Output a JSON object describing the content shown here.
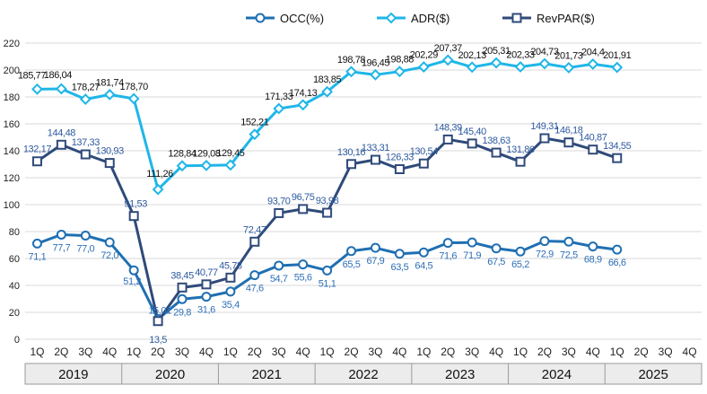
{
  "chart_data": {
    "type": "line",
    "title": "",
    "xlabel": "",
    "ylabel": "",
    "ylim": [
      0,
      220
    ],
    "yticks": [
      0,
      20,
      40,
      60,
      80,
      100,
      120,
      140,
      160,
      180,
      200,
      220
    ],
    "grid": true,
    "legend_position": "top-center",
    "quarters": [
      "1Q",
      "2Q",
      "3Q",
      "4Q",
      "1Q",
      "2Q",
      "3Q",
      "4Q",
      "1Q",
      "2Q",
      "3Q",
      "4Q",
      "1Q",
      "2Q",
      "3Q",
      "4Q",
      "1Q",
      "2Q",
      "3Q",
      "4Q",
      "1Q",
      "2Q",
      "3Q",
      "4Q",
      "1Q",
      "2Q",
      "3Q",
      "4Q"
    ],
    "years": [
      "2019",
      "2020",
      "2021",
      "2022",
      "2023",
      "2024",
      "2025"
    ],
    "series": [
      {
        "name": "OCC(%)",
        "color": "#1f6fb2",
        "label_color": "#2e6fb7",
        "marker": "circle",
        "values": [
          71.1,
          77.7,
          77.0,
          72.0,
          51.2,
          15.01,
          29.8,
          31.6,
          35.4,
          47.6,
          54.7,
          55.6,
          51.1,
          65.5,
          67.9,
          63.5,
          64.5,
          71.6,
          71.9,
          67.5,
          65.2,
          72.9,
          72.5,
          68.9,
          66.6
        ],
        "labels": [
          "71,1",
          "77,7",
          "77,0",
          "72,0",
          "51,2",
          "15,01",
          "29,8",
          "31,6",
          "35,4",
          "47,6",
          "54,7",
          "55,6",
          "51,1",
          "65,5",
          "67,9",
          "63,5",
          "64,5",
          "71,6",
          "71,9",
          "67,5",
          "65,2",
          "72,9",
          "72,5",
          "68,9",
          "66,6"
        ]
      },
      {
        "name": "ADR($)",
        "color": "#1fb6e8",
        "label_color": "#111111",
        "marker": "diamond",
        "values": [
          185.77,
          186.04,
          178.27,
          181.74,
          178.7,
          111.26,
          128.84,
          129.08,
          129.45,
          152.21,
          171.33,
          174.13,
          183.85,
          198.78,
          196.45,
          198.88,
          202.29,
          207.37,
          202.13,
          205.31,
          202.33,
          204.73,
          201.73,
          204.4,
          201.91
        ],
        "labels": [
          "185,77",
          "186,04",
          "178,27",
          "181,74",
          "178,70",
          "111,26",
          "128,84",
          "129,08",
          "129,45",
          "152,21",
          "171,33",
          "174,13",
          "183,85",
          "198,78",
          "196,45",
          "198,88",
          "202,29",
          "207,37",
          "202,13",
          "205,31",
          "202,33",
          "204,73",
          "201,73",
          "204,4",
          "201,91"
        ]
      },
      {
        "name": "RevPAR($)",
        "color": "#2f4a7a",
        "label_color": "#2e5aa0",
        "marker": "square",
        "values": [
          132.17,
          144.48,
          137.33,
          130.93,
          91.53,
          13.5,
          38.45,
          40.77,
          45.78,
          72.47,
          93.7,
          96.75,
          93.98,
          130.16,
          133.31,
          126.33,
          130.54,
          148.39,
          145.4,
          138.63,
          131.86,
          149.31,
          146.18,
          140.87,
          134.55
        ],
        "labels": [
          "132,17",
          "144,48",
          "137,33",
          "130,93",
          "91,53",
          "13,5",
          "38,45",
          "40,77",
          "45,78",
          "72,47",
          "93,70",
          "96,75",
          "93,98",
          "130,16",
          "133,31",
          "126,33",
          "130,54",
          "148,39",
          "145,40",
          "138,63",
          "131,86",
          "149,31",
          "146,18",
          "140,87",
          "134,55"
        ]
      }
    ]
  }
}
